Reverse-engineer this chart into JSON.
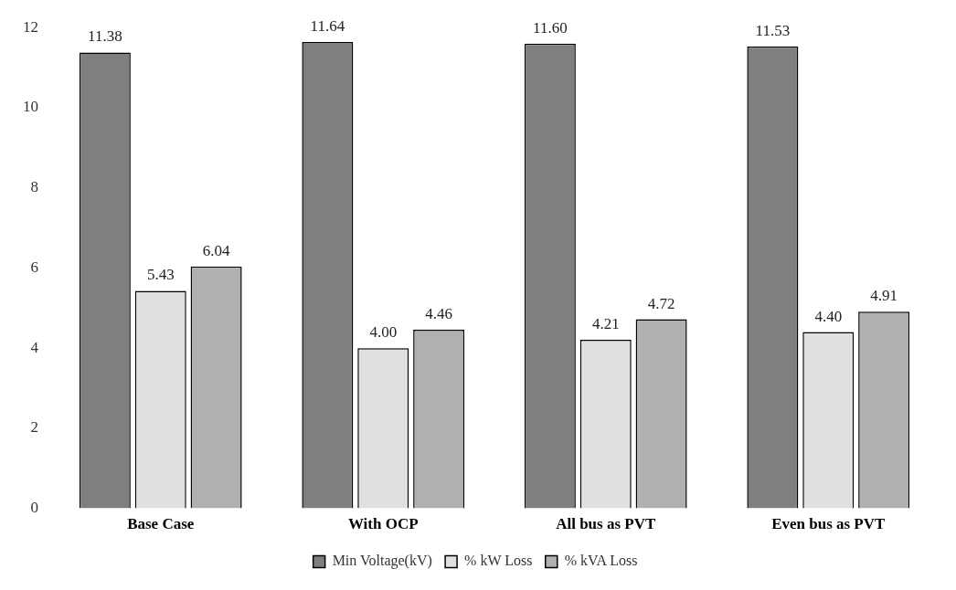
{
  "chart_data": {
    "type": "bar",
    "categories": [
      "Base Case",
      "With OCP",
      "All bus as PVT",
      "Even bus as PVT"
    ],
    "series": [
      {
        "name": "Min Voltage(kV)",
        "color": "#7f7f7f",
        "values": [
          11.38,
          11.64,
          11.6,
          11.53
        ],
        "value_labels": [
          "11.38",
          "11.64",
          "11.60",
          "11.53"
        ]
      },
      {
        "name": "% kW Loss",
        "color": "#e0e0e0",
        "values": [
          5.43,
          4.0,
          4.21,
          4.4
        ],
        "value_labels": [
          "5.43",
          "4.00",
          "4.21",
          "4.40"
        ]
      },
      {
        "name": "% kVA Loss",
        "color": "#b0b0b0",
        "values": [
          6.04,
          4.46,
          4.72,
          4.91
        ],
        "value_labels": [
          "6.04",
          "4.46",
          "4.72",
          "4.91"
        ]
      }
    ],
    "ylim": [
      0,
      12
    ],
    "yticks": [
      0,
      2,
      4,
      6,
      8,
      10,
      12
    ],
    "grid": false,
    "legend": "bottom"
  }
}
